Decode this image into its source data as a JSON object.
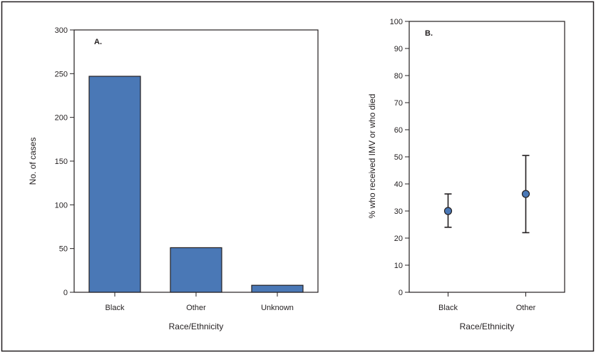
{
  "colors": {
    "bar": "#4a78b6",
    "marker": "#4a78b6",
    "stroke": "#231f20"
  },
  "chart_data": [
    {
      "type": "bar",
      "panel": "A.",
      "categories": [
        "Black",
        "Other",
        "Unknown"
      ],
      "values": [
        247,
        51,
        8
      ],
      "xlabel": "Race/Ethnicity",
      "ylabel": "No. of cases",
      "ylim": [
        0,
        300
      ],
      "yticks": [
        0,
        50,
        100,
        150,
        200,
        250,
        300
      ],
      "grid": false
    },
    {
      "type": "scatter",
      "panel": "B.",
      "categories": [
        "Black",
        "Other"
      ],
      "values": [
        30,
        36.3
      ],
      "error_low": [
        24,
        22
      ],
      "error_high": [
        36.3,
        50.5
      ],
      "xlabel": "Race/Ethnicity",
      "ylabel": "% who received IMV or who died",
      "ylim": [
        0,
        100
      ],
      "yticks": [
        0,
        10,
        20,
        30,
        40,
        50,
        60,
        70,
        80,
        90,
        100
      ],
      "grid": false
    }
  ]
}
